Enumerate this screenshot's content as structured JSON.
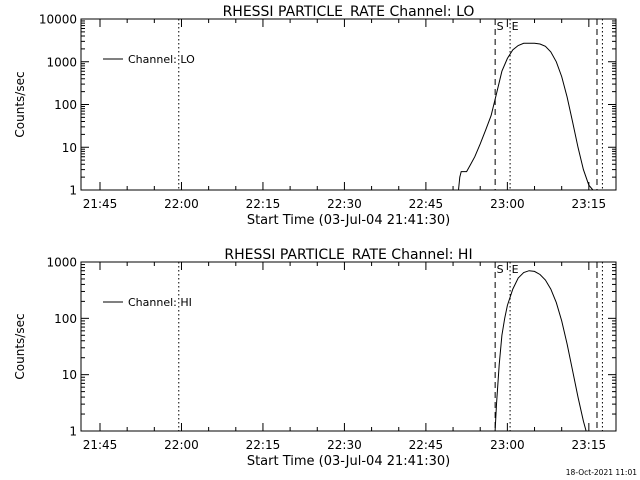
{
  "footer": {
    "timestamp": "18-Oct-2021 11:01"
  },
  "chart_data": [
    {
      "type": "line",
      "title": "RHESSI PARTICLE_RATE Channel: LO",
      "xlabel": "Start Time (03-Jul-04 21:41:30)",
      "ylabel": "Counts/sec",
      "yscale": "log",
      "xlim": [
        "21:41:30",
        "23:20:00"
      ],
      "ylim": [
        1,
        10000
      ],
      "x_ticks": [
        "21:45",
        "22:00",
        "22:15",
        "22:30",
        "22:45",
        "23:00",
        "23:15"
      ],
      "y_ticks": [
        1,
        10,
        100,
        1000,
        10000
      ],
      "y_tick_labels": [
        "1",
        "10",
        "100",
        "1000",
        "10000"
      ],
      "legend": {
        "position": "top-left",
        "entries": [
          "Channel: LO"
        ]
      },
      "vlines": [
        {
          "x": "21:59:30",
          "style": "dotted"
        },
        {
          "x": "22:57:45",
          "style": "dashed",
          "label": "S"
        },
        {
          "x": "23:00:30",
          "style": "dotted",
          "label": "E"
        },
        {
          "x": "23:16:30",
          "style": "dashed"
        },
        {
          "x": "23:17:30",
          "style": "dotted"
        }
      ],
      "series": [
        {
          "name": "Channel: LO",
          "x": [
            "22:51:00",
            "22:51:15",
            "22:51:30",
            "22:52:30",
            "22:53:15",
            "22:54:00",
            "22:55:00",
            "22:56:00",
            "22:57:00",
            "22:58:00",
            "22:59:00",
            "23:00:00",
            "23:01:00",
            "23:02:00",
            "23:03:00",
            "23:04:00",
            "23:05:00",
            "23:06:00",
            "23:07:00",
            "23:08:00",
            "23:09:00",
            "23:10:00",
            "23:11:00",
            "23:12:00",
            "23:13:00",
            "23:14:00",
            "23:15:00",
            "23:15:45"
          ],
          "values": [
            1,
            2,
            2.7,
            2.7,
            4,
            6,
            12,
            25,
            55,
            180,
            600,
            1200,
            1900,
            2400,
            2700,
            2700,
            2700,
            2600,
            2300,
            1700,
            1000,
            450,
            150,
            40,
            10,
            3,
            1.3,
            1
          ]
        }
      ]
    },
    {
      "type": "line",
      "title": "RHESSI PARTICLE_RATE Channel: HI",
      "xlabel": "Start Time (03-Jul-04 21:41:30)",
      "ylabel": "Counts/sec",
      "yscale": "log",
      "xlim": [
        "21:41:30",
        "23:20:00"
      ],
      "ylim": [
        1,
        1000
      ],
      "x_ticks": [
        "21:45",
        "22:00",
        "22:15",
        "22:30",
        "22:45",
        "23:00",
        "23:15"
      ],
      "y_ticks": [
        1,
        10,
        100,
        1000
      ],
      "y_tick_labels": [
        "1",
        "10",
        "100",
        "1000"
      ],
      "legend": {
        "position": "top-left",
        "entries": [
          "Channel: HI"
        ]
      },
      "vlines": [
        {
          "x": "21:59:30",
          "style": "dotted"
        },
        {
          "x": "22:57:45",
          "style": "dashed",
          "label": "S"
        },
        {
          "x": "23:00:30",
          "style": "dotted",
          "label": "E"
        },
        {
          "x": "23:16:30",
          "style": "dashed"
        },
        {
          "x": "23:17:30",
          "style": "dotted"
        }
      ],
      "series": [
        {
          "name": "Channel: HI",
          "x": [
            "22:57:45",
            "22:58:00",
            "22:58:30",
            "22:59:00",
            "22:59:30",
            "23:00:00",
            "23:01:00",
            "23:02:00",
            "23:03:00",
            "23:04:00",
            "23:05:00",
            "23:06:00",
            "23:07:00",
            "23:08:00",
            "23:09:00",
            "23:10:00",
            "23:11:00",
            "23:12:00",
            "23:13:00",
            "23:14:00",
            "23:14:30"
          ],
          "values": [
            1,
            3,
            15,
            50,
            100,
            170,
            330,
            520,
            650,
            700,
            680,
            600,
            480,
            330,
            190,
            90,
            35,
            12,
            4,
            1.5,
            1
          ]
        }
      ]
    }
  ]
}
